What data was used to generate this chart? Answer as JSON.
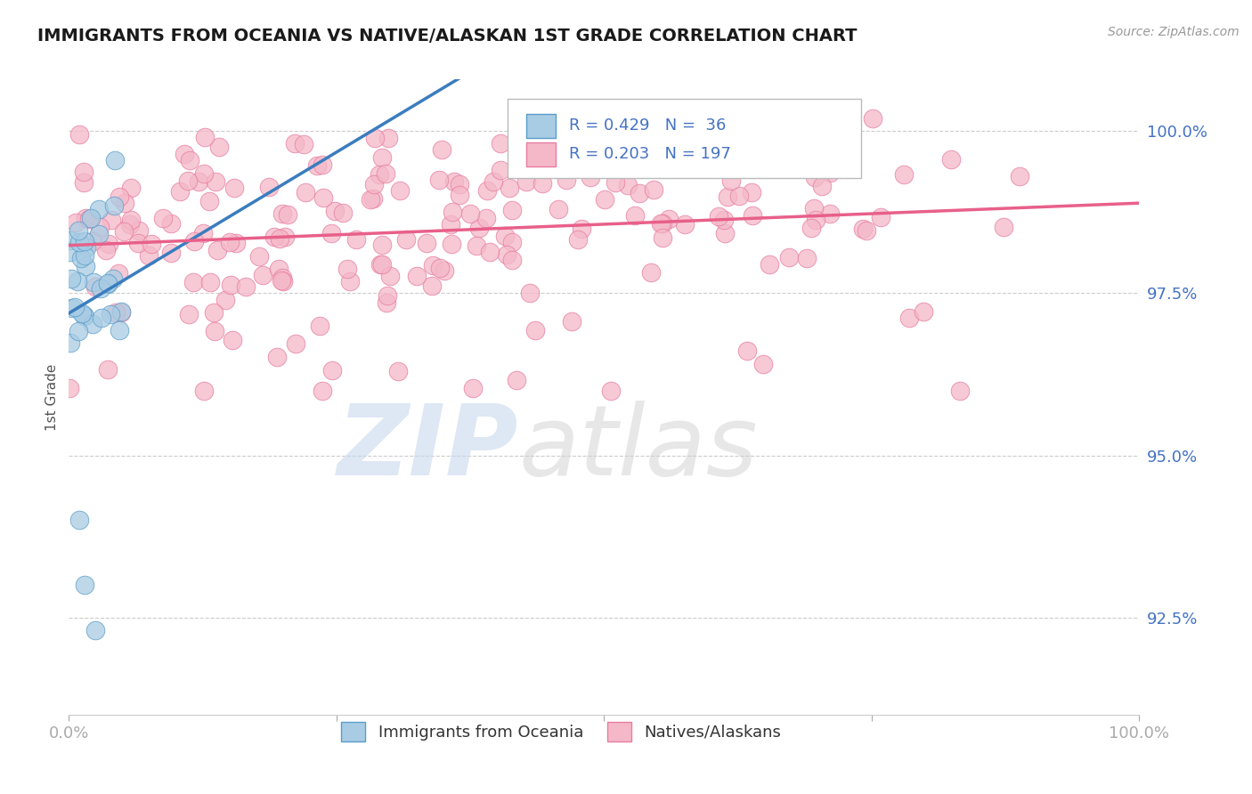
{
  "title": "IMMIGRANTS FROM OCEANIA VS NATIVE/ALASKAN 1ST GRADE CORRELATION CHART",
  "source_text": "Source: ZipAtlas.com",
  "ylabel": "1st Grade",
  "xlim": [
    0.0,
    1.0
  ],
  "ylim": [
    0.91,
    1.008
  ],
  "yticks": [
    0.925,
    0.95,
    0.975,
    1.0
  ],
  "ytick_labels": [
    "92.5%",
    "95.0%",
    "97.5%",
    "100.0%"
  ],
  "xticks": [
    0.0,
    0.25,
    0.5,
    0.75,
    1.0
  ],
  "xtick_labels": [
    "0.0%",
    "",
    "",
    "",
    "100.0%"
  ],
  "legend_blue_label": "Immigrants from Oceania",
  "legend_pink_label": "Natives/Alaskans",
  "blue_R": 0.429,
  "blue_N": 36,
  "pink_R": 0.203,
  "pink_N": 197,
  "blue_color": "#a8cce4",
  "pink_color": "#f4b8c8",
  "blue_edge_color": "#5b9dc9",
  "pink_edge_color": "#e87da0",
  "blue_line_color": "#3a7dbf",
  "pink_line_color": "#e8608a",
  "background_color": "#ffffff",
  "grid_color": "#cccccc",
  "title_color": "#1a1a1a",
  "axis_label_color": "#555555",
  "tick_label_color": "#4472c4",
  "source_color": "#999999",
  "watermark_zip_color": "#c8d8ee",
  "watermark_atlas_color": "#d0d0d0"
}
